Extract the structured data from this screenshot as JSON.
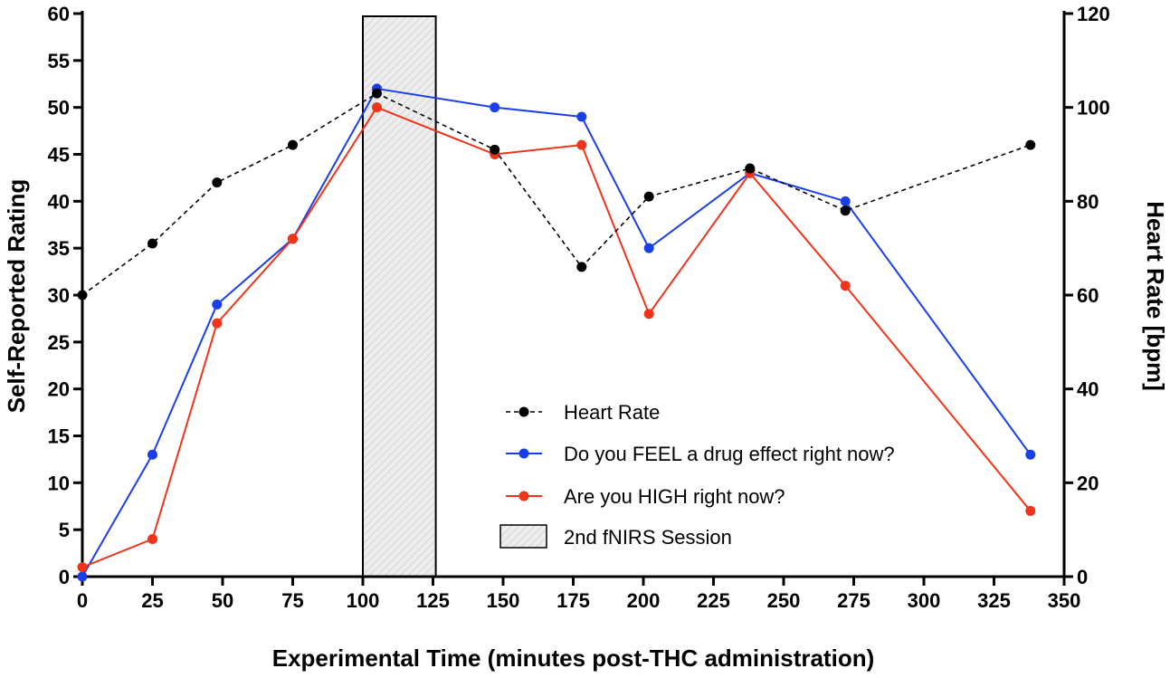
{
  "chart_data": {
    "type": "line",
    "title": "",
    "xlabel": "Experimental Time (minutes post-THC administration)",
    "ylabel_left": "Self-Reported Rating",
    "ylabel_right": "Heart Rate [bpm]",
    "xlim": [
      0,
      350
    ],
    "ylim_left": [
      0,
      60
    ],
    "ylim_right": [
      0,
      120
    ],
    "x_ticks": [
      0,
      25,
      50,
      75,
      100,
      125,
      150,
      175,
      200,
      225,
      250,
      275,
      300,
      325,
      350
    ],
    "y_left_ticks": [
      0,
      5,
      10,
      15,
      20,
      25,
      30,
      35,
      40,
      45,
      50,
      55,
      60
    ],
    "y_right_ticks": [
      0,
      20,
      40,
      60,
      80,
      100,
      120
    ],
    "grid": false,
    "legend_position": "bottom-center",
    "shaded_region": {
      "label": "2nd fNIRS Session",
      "x_start": 100,
      "x_end": 126,
      "y_start": 0,
      "y_end": 60
    },
    "series": [
      {
        "name": "Heart Rate",
        "axis": "right",
        "color": "#000000",
        "style": "dashed",
        "x": [
          0,
          25,
          48,
          75,
          105,
          147,
          178,
          202,
          238,
          272,
          338
        ],
        "values": [
          60,
          71,
          84,
          92,
          103,
          91,
          66,
          81,
          87,
          78,
          92
        ]
      },
      {
        "name": "Do you FEEL a drug effect right now?",
        "axis": "left",
        "color": "#1a3fe8",
        "style": "solid",
        "x": [
          0,
          25,
          48,
          75,
          105,
          147,
          178,
          202,
          238,
          272,
          338
        ],
        "values": [
          0,
          13,
          29,
          36,
          52,
          50,
          49,
          35,
          43,
          40,
          13
        ]
      },
      {
        "name": "Are you HIGH right now?",
        "axis": "left",
        "color": "#f0341a",
        "style": "solid",
        "x": [
          0,
          25,
          48,
          75,
          105,
          147,
          178,
          202,
          238,
          272,
          338
        ],
        "values": [
          1,
          4,
          27,
          36,
          50,
          45,
          46,
          28,
          43,
          31,
          7
        ]
      }
    ]
  }
}
